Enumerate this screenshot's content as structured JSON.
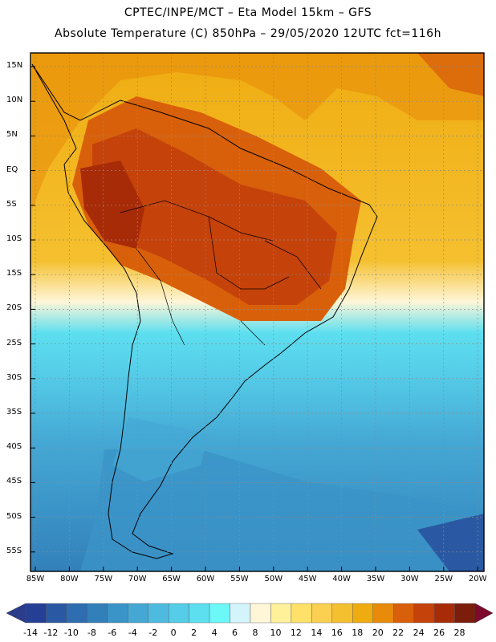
{
  "header": {
    "line1": "CPTEC/INPE/MCT –  Eta Model 15km – GFS",
    "line2": "Absolute Temperature (C) 850hPa – 29/05/2020 12UTC fct=116h"
  },
  "map": {
    "lat_labels": [
      "15N",
      "10N",
      "5N",
      "EQ",
      "5S",
      "10S",
      "15S",
      "20S",
      "25S",
      "30S",
      "35S",
      "40S",
      "45S",
      "50S",
      "55S"
    ],
    "lon_labels": [
      "85W",
      "80W",
      "75W",
      "70W",
      "65W",
      "60W",
      "55W",
      "50W",
      "45W",
      "40W",
      "35W",
      "30W",
      "25W",
      "20W"
    ]
  },
  "colorbar": {
    "labels": [
      "-14",
      "-12",
      "-10",
      "-8",
      "-6",
      "-4",
      "-2",
      "0",
      "2",
      "4",
      "6",
      "8",
      "10",
      "12",
      "14",
      "16",
      "18",
      "20",
      "22",
      "24",
      "26",
      "28"
    ],
    "colors": [
      "#253f94",
      "#2a58a3",
      "#2d6db0",
      "#3280ba",
      "#3b94c7",
      "#45a8d4",
      "#4fbadf",
      "#55cce8",
      "#5ddff0",
      "#6df8f8",
      "#d4f4fb",
      "#fff6d8",
      "#fff19a",
      "#ffe169",
      "#fbd050",
      "#f5c02f",
      "#efac11",
      "#e88a0a",
      "#d9600a",
      "#c5420a",
      "#a82b08",
      "#7a1d0b"
    ],
    "end_colors": [
      "#2b3c8c",
      "#7d0a2d"
    ]
  }
}
